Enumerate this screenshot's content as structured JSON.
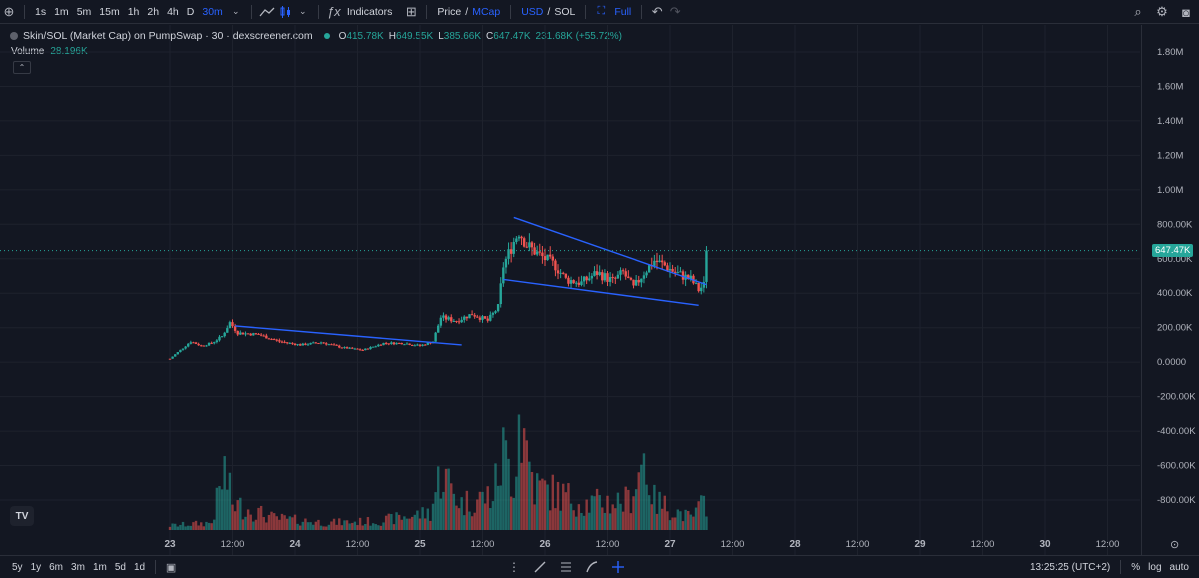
{
  "toolbar": {
    "intervals": [
      "1s",
      "1m",
      "5m",
      "15m",
      "1h",
      "2h",
      "4h",
      "D",
      "30m"
    ],
    "active_interval": "30m",
    "indicators_label": "Indicators",
    "price_label": "Price",
    "slash": "/",
    "mcap_label": "MCap",
    "usd_label": "USD",
    "sol_label": "SOL",
    "full_label": "Full"
  },
  "legend": {
    "title": "Skin/SOL (Market Cap) on PumpSwap · 30 · dexscreener.com",
    "o_key": "O",
    "o_val": "415.78K",
    "h_key": "H",
    "h_val": "649.55K",
    "l_key": "L",
    "l_val": "385.66K",
    "c_key": "C",
    "c_val": "647.47K",
    "change": "231.68K (+55.72%)",
    "volume_label": "Volume",
    "volume_val": "28.196K"
  },
  "last_price_label": "647.47K",
  "bottom_bar": {
    "ranges": [
      "5y",
      "1y",
      "6m",
      "3m",
      "1m",
      "5d",
      "1d"
    ],
    "time": "13:25:25 (UTC+2)",
    "percent": "%",
    "log": "log",
    "auto": "auto"
  },
  "colors": {
    "up": "#26a69a",
    "down": "#ef5350",
    "trendline": "#2962ff",
    "background": "#131722"
  },
  "chart_data": {
    "type": "candlestick",
    "title": "Skin/SOL (Market Cap) on PumpSwap · 30 · dexscreener.com",
    "y_ticks": [
      1800000,
      1600000,
      1400000,
      1200000,
      1000000,
      800000,
      600000,
      400000,
      200000,
      0,
      -200000,
      -400000,
      -600000,
      -800000
    ],
    "y_tick_labels": [
      "1.80M",
      "1.60M",
      "1.40M",
      "1.20M",
      "1.00M",
      "800.00K",
      "600.00K",
      "400.00K",
      "200.00K",
      "0.0000",
      "-200.00K",
      "-400.00K",
      "-600.00K",
      "-800.00K"
    ],
    "x_tick_labels": [
      "23",
      "12:00",
      "24",
      "12:00",
      "25",
      "12:00",
      "26",
      "12:00",
      "27",
      "12:00",
      "28",
      "12:00",
      "29",
      "12:00",
      "30",
      "12:00"
    ],
    "x_ticks_hours": [
      0,
      12,
      24,
      36,
      48,
      60,
      72,
      84,
      96,
      108,
      120,
      132,
      144,
      156,
      168,
      180
    ],
    "x_start_hours": -2.5,
    "candle_interval_hours": 0.5,
    "last_close": 647470,
    "keypoints": [
      [
        0,
        20000
      ],
      [
        2,
        70000
      ],
      [
        4,
        120000
      ],
      [
        6,
        95000
      ],
      [
        8,
        110000
      ],
      [
        10,
        150000
      ],
      [
        11.5,
        230000
      ],
      [
        13,
        170000
      ],
      [
        17,
        160000
      ],
      [
        21,
        120000
      ],
      [
        25,
        100000
      ],
      [
        29,
        115000
      ],
      [
        33,
        85000
      ],
      [
        37,
        70000
      ],
      [
        41,
        110000
      ],
      [
        45,
        110000
      ],
      [
        48,
        95000
      ],
      [
        50.5,
        120000
      ],
      [
        52,
        260000
      ],
      [
        55,
        240000
      ],
      [
        58,
        280000
      ],
      [
        61,
        240000
      ],
      [
        63,
        320000
      ],
      [
        64,
        560000
      ],
      [
        66,
        700000
      ],
      [
        67,
        760000
      ],
      [
        68.5,
        680000
      ],
      [
        71,
        620000
      ],
      [
        74,
        560000
      ],
      [
        76,
        480000
      ],
      [
        79,
        460000
      ],
      [
        82,
        520000
      ],
      [
        85,
        470000
      ],
      [
        87,
        520000
      ],
      [
        89,
        430000
      ],
      [
        91,
        520000
      ],
      [
        93,
        590000
      ],
      [
        95,
        560000
      ],
      [
        97,
        520000
      ],
      [
        100,
        480000
      ],
      [
        101.5,
        420000
      ],
      [
        103,
        460000
      ]
    ],
    "volume_keypoints": [
      [
        0,
        15000
      ],
      [
        8,
        25000
      ],
      [
        10.5,
        200000
      ],
      [
        12,
        90000
      ],
      [
        20,
        40000
      ],
      [
        30,
        25000
      ],
      [
        40,
        30000
      ],
      [
        50,
        60000
      ],
      [
        52,
        200000
      ],
      [
        56,
        90000
      ],
      [
        62,
        120000
      ],
      [
        64,
        260000
      ],
      [
        66,
        180000
      ],
      [
        67,
        400000
      ],
      [
        70,
        150000
      ],
      [
        80,
        90000
      ],
      [
        88,
        100000
      ],
      [
        91,
        250000
      ],
      [
        93,
        100000
      ],
      [
        100,
        40000
      ],
      [
        103,
        100000
      ]
    ],
    "trendlines": [
      [
        [
          12.5,
          210000
        ],
        [
          56,
          100000
        ]
      ],
      [
        [
          66,
          840000
        ],
        [
          103,
          450000
        ]
      ],
      [
        [
          64,
          480000
        ],
        [
          101.5,
          330000
        ]
      ]
    ]
  }
}
